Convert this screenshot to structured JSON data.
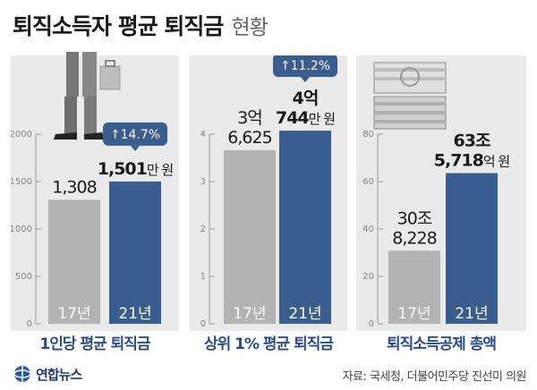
{
  "header": {
    "title": "퇴직소득자 평균 퇴직금",
    "subtitle": "현황"
  },
  "colors": {
    "bar_prev": "#b3b3b3",
    "bar_curr": "#3a5d8f",
    "badge": "#3a5d8f",
    "panel_bg": "#eaeaea",
    "label": "#2a4e8c"
  },
  "chart_data": [
    {
      "type": "bar",
      "title": "1인당 평균 퇴직금",
      "categories": [
        "17년",
        "21년"
      ],
      "values": [
        1308,
        1501
      ],
      "ylim": [
        0,
        2000
      ],
      "yticks": [
        "0",
        "500",
        "1000",
        "1500",
        "2000"
      ],
      "data_labels": [
        {
          "number": "1,308",
          "unit": ""
        },
        {
          "number": "1,501",
          "unit": "만 원"
        }
      ],
      "change_badge": "↑14.7%"
    },
    {
      "type": "bar",
      "title": "상위 1% 평균 퇴직금",
      "categories": [
        "17년",
        "21년"
      ],
      "values": [
        3.6625,
        4.0744
      ],
      "ylim": [
        0,
        4
      ],
      "yticks": [
        "0",
        "1",
        "2",
        "3",
        "4"
      ],
      "data_labels": [
        {
          "line1": "3억",
          "number": "6,625",
          "unit": ""
        },
        {
          "line1": "4억",
          "number": "744",
          "unit": "만 원"
        }
      ],
      "change_badge": "↑11.2%"
    },
    {
      "type": "bar",
      "title": "퇴직소득공제 총액",
      "categories": [
        "17년",
        "21년"
      ],
      "values": [
        30.8228,
        63.5718
      ],
      "ylim": [
        0,
        80
      ],
      "yticks": [
        "0",
        "20",
        "40",
        "60",
        "80"
      ],
      "data_labels": [
        {
          "line1": "30조",
          "number": "8,228",
          "unit": ""
        },
        {
          "line1": "63조",
          "number": "5,718",
          "unit": "억 원"
        }
      ]
    }
  ],
  "footer": {
    "logo": "연합뉴스",
    "source": "자료: 국세청, 더불어민주당 진선미 의원"
  }
}
